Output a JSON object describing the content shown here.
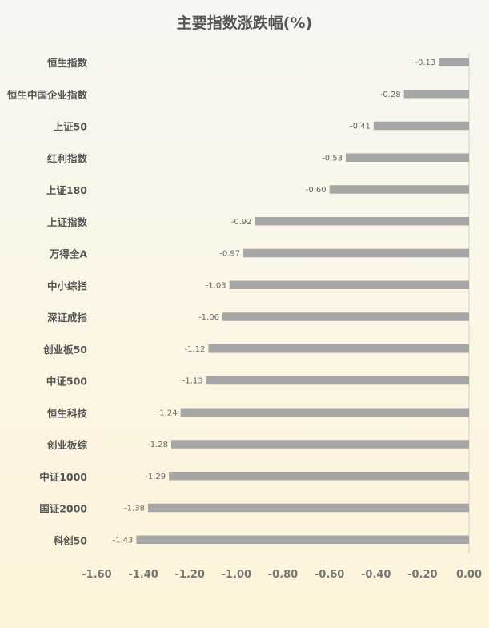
{
  "chart_data": {
    "type": "bar",
    "orientation": "horizontal",
    "title": "主要指数涨跌幅(%)",
    "categories": [
      "恒生指数",
      "恒生中国企业指数",
      "上证50",
      "红利指数",
      "上证180",
      "上证指数",
      "万得全A",
      "中小综指",
      "深证成指",
      "创业板50",
      "中证500",
      "恒生科技",
      "创业板综",
      "中证1000",
      "国证2000",
      "科创50"
    ],
    "values": [
      -0.13,
      -0.28,
      -0.41,
      -0.53,
      -0.6,
      -0.92,
      -0.97,
      -1.03,
      -1.06,
      -1.12,
      -1.13,
      -1.24,
      -1.28,
      -1.29,
      -1.38,
      -1.43
    ],
    "data_labels": [
      "-0.13",
      "-0.28",
      "-0.41",
      "-0.53",
      "-0.60",
      "-0.92",
      "-0.97",
      "-1.03",
      "-1.06",
      "-1.12",
      "-1.13",
      "-1.24",
      "-1.28",
      "-1.29",
      "-1.38",
      "-1.43"
    ],
    "xlim": [
      -1.6,
      0.0
    ],
    "x_ticks": [
      "-1.60",
      "-1.40",
      "-1.20",
      "-1.00",
      "-0.80",
      "-0.60",
      "-0.40",
      "-0.20",
      "0.00"
    ],
    "x_tick_values": [
      -1.6,
      -1.4,
      -1.2,
      -1.0,
      -0.8,
      -0.6,
      -0.4,
      -0.2,
      0.0
    ],
    "bar_color": "#a6a6a6",
    "grid": false,
    "legend": "none"
  }
}
